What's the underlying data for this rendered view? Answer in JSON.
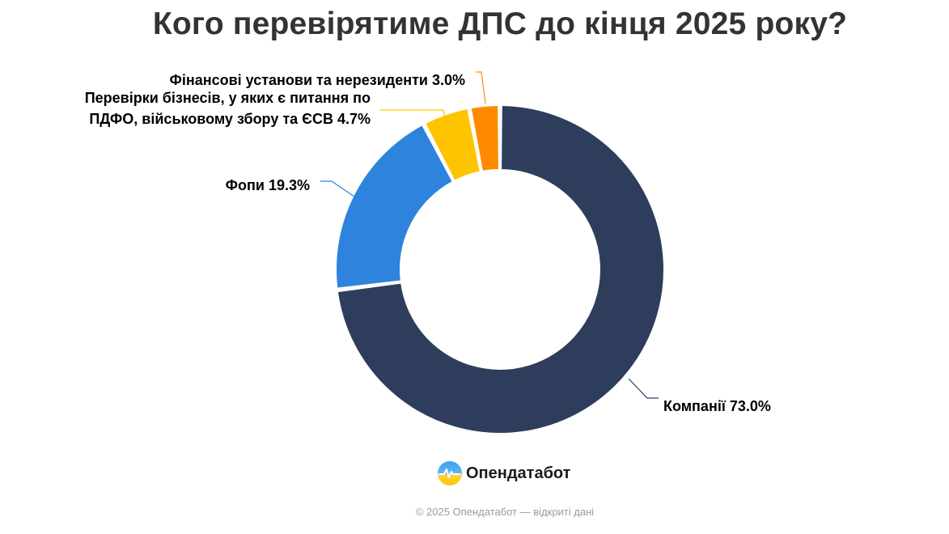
{
  "chart_data": {
    "type": "pie",
    "title": "Кого перевірятиме ДПС до кінця 2025 року?",
    "donut": true,
    "slices": [
      {
        "label": "Компанії",
        "display_lines": [
          "Компанії 73.0%"
        ],
        "value": 73.0,
        "color": "#2e3d5c"
      },
      {
        "label": "Фопи",
        "display_lines": [
          "Фопи 19.3%"
        ],
        "value": 19.3,
        "color": "#2e83dc"
      },
      {
        "label": "Перевірки бізнесів, у яких є питання по ПДФО, військовому збору та ЄСВ",
        "display_lines": [
          "Перевірки бізнесів, у яких є питання по",
          "ПДФО, військовому збору та ЄСВ 4.7%"
        ],
        "value": 4.7,
        "color": "#ffc400"
      },
      {
        "label": "Фінансові установи та нерезиденти",
        "display_lines": [
          "Фінансові установи та нерезиденти 3.0%"
        ],
        "value": 3.0,
        "color": "#ff8a00"
      }
    ],
    "legend": "none"
  },
  "brand": {
    "name": "Опендатабот",
    "logo_icon": "opendatabot-logo-icon"
  },
  "footer": {
    "text": "© 2025 Опендатабот — відкриті дані"
  }
}
